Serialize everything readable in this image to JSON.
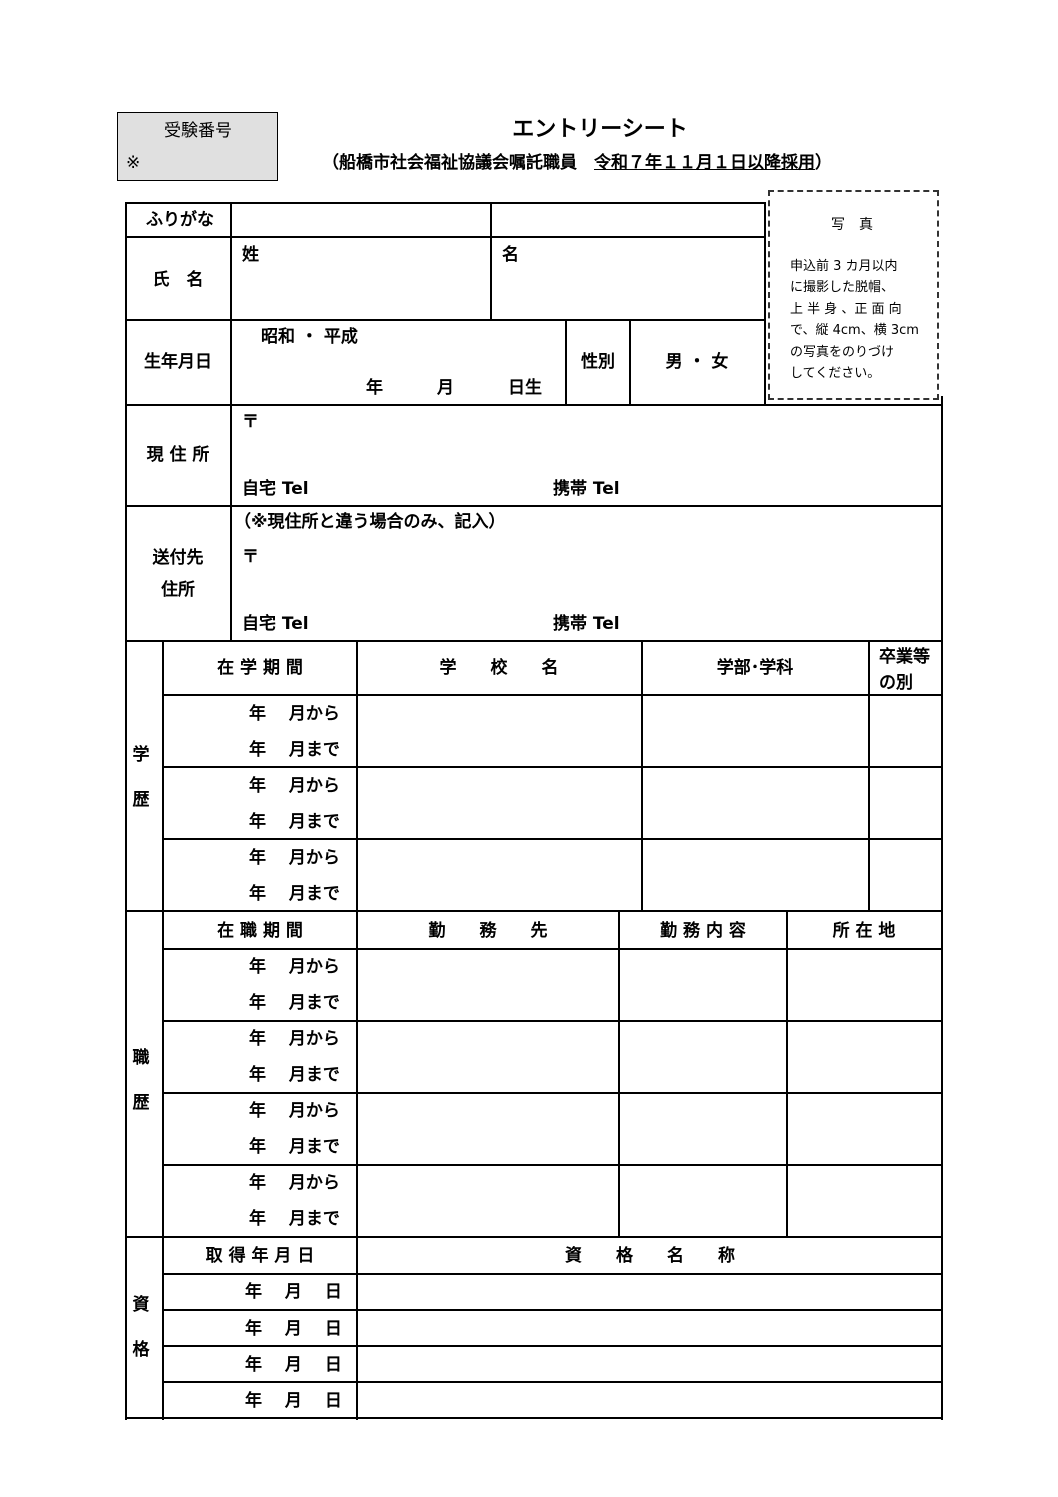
{
  "header": {
    "exam_number_label": "受験番号",
    "exam_number_mark": "※",
    "title": "エントリーシート",
    "subtitle_prefix": "（船橋市社会福祉協議会嘱託職員　",
    "subtitle_underlined": "令和７年１１月１日以降採用",
    "subtitle_suffix": "）"
  },
  "photo": {
    "title": "写　真",
    "instructions": [
      "申込前 3 カ月以内",
      "に撮影した脱帽、",
      "上 半 身 、正 面 向",
      "で、縦 4cm、横 3cm",
      "の写真をのりづけ",
      "してください。"
    ]
  },
  "personal": {
    "furigana_label": "ふりがな",
    "name_label": "氏　名",
    "family_name_label": "姓",
    "given_name_label": "名",
    "birth_label": "生年月日",
    "era_options": "昭和 ・ 平成",
    "year": "年",
    "month": "月",
    "day_born": "日生",
    "sex_label": "性別",
    "sex_options": "男 ・ 女",
    "address_label": "現 住 所",
    "postal_mark": "〒",
    "home_tel": "自宅 Tel",
    "mobile_tel": "携帯 Tel",
    "mailing_label_1": "送付先",
    "mailing_label_2": "住所",
    "mailing_note": "（※現住所と違う場合のみ、記入）"
  },
  "education": {
    "section_label": [
      "学",
      "歴"
    ],
    "headers": [
      "在 学 期 間",
      "学　　校　　名",
      "学部･学科",
      "卒業等",
      "の別"
    ],
    "period_rows": [
      "年　 月から",
      "年　 月まで",
      "年　 月から",
      "年　 月まで",
      "年　 月から",
      "年　 月まで"
    ]
  },
  "work": {
    "section_label": [
      "職",
      "歴"
    ],
    "headers": [
      "在 職 期 間",
      "勤　　務　　先",
      "勤 務 内 容",
      "所 在 地"
    ],
    "period_rows": [
      "年　 月から",
      "年　 月まで",
      "年　 月から",
      "年　 月まで",
      "年　 月から",
      "年　 月まで",
      "年　 月から",
      "年　 月まで"
    ]
  },
  "qualifications": {
    "section_label": [
      "資",
      "格"
    ],
    "headers": [
      "取 得 年 月 日",
      "資　　格　　名　　称"
    ],
    "date_rows": [
      "年　 月　 日",
      "年　 月　 日",
      "年　 月　 日",
      "年　 月　 日"
    ]
  }
}
